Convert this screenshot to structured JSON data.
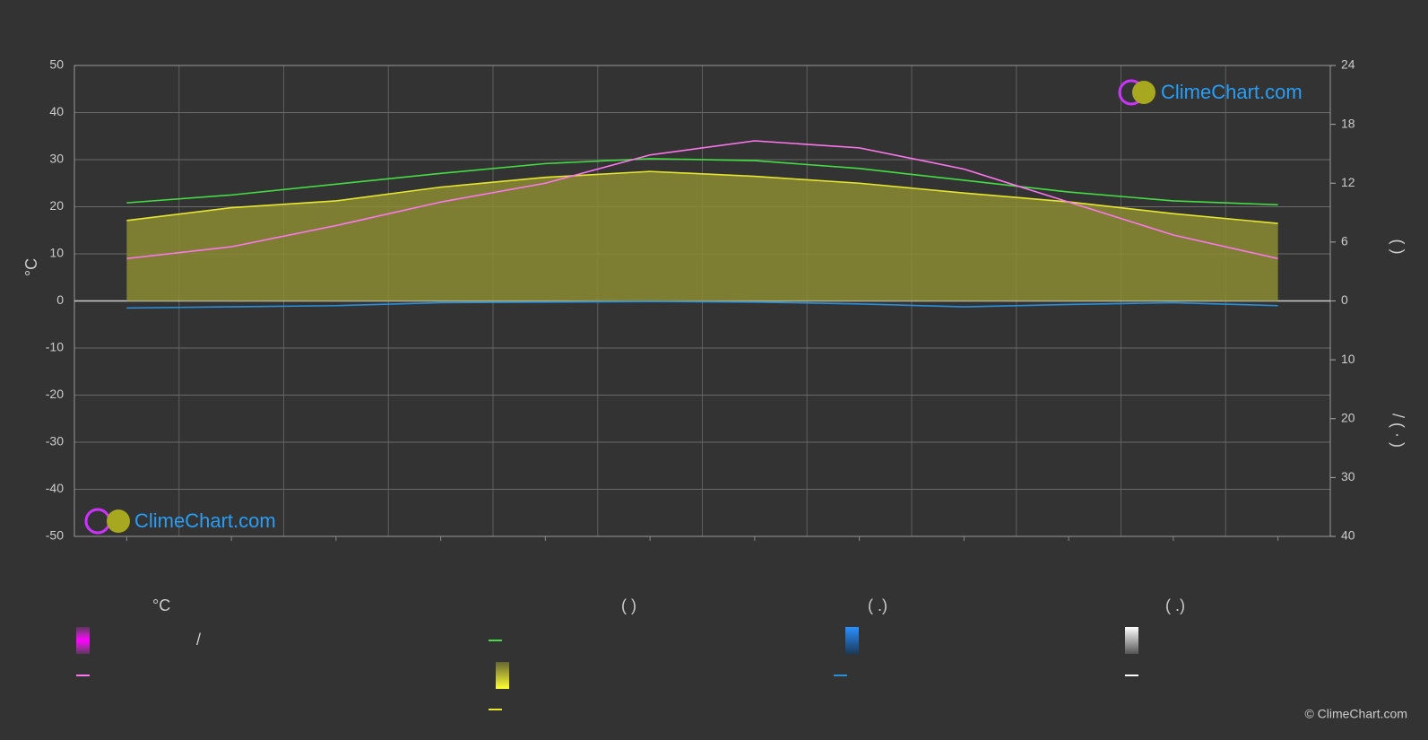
{
  "chart_data": {
    "type": "line",
    "y_label": "°C",
    "y2_label": "(   )",
    "y3_label": "/   (  ·  )",
    "watermark": "ClimeChart.com",
    "copyright": "© ClimeChart.com",
    "legend_headers": [
      "°C",
      "(          )",
      "(   .)",
      "(   .)"
    ],
    "legend_separator": "/",
    "categories": [
      null,
      null,
      null,
      null,
      null,
      null,
      null,
      null,
      null,
      null,
      null,
      null
    ],
    "ylim": [
      -50,
      50
    ],
    "yticks": [
      -50,
      -40,
      -30,
      -20,
      -10,
      0,
      10,
      20,
      30,
      40,
      50
    ],
    "y2lim": [
      0,
      24
    ],
    "y2ticks": [
      0,
      6,
      12,
      18,
      24
    ],
    "y3lim": [
      0,
      40
    ],
    "y3ticks": [
      10,
      20,
      30,
      40
    ],
    "grid": true,
    "series": [
      {
        "color": "#44dd44",
        "axis": "y2",
        "values": [
          10.0,
          10.8,
          11.9,
          13.0,
          14.0,
          14.5,
          14.3,
          13.5,
          12.3,
          11.1,
          10.2,
          9.8
        ]
      },
      {
        "color": "#e6e632",
        "axis": "y2",
        "fill": "#8c8c32",
        "values": [
          8.2,
          9.5,
          10.2,
          11.6,
          12.6,
          13.2,
          12.7,
          12.0,
          11.0,
          10.1,
          8.9,
          7.9
        ]
      },
      {
        "color": "#ff77ee",
        "values": [
          9,
          11.5,
          16,
          21,
          25,
          31,
          34,
          32.5,
          28,
          21,
          14,
          9
        ]
      },
      {
        "color": "#2a8fd8",
        "axis": "y3",
        "values": [
          1.2,
          1.0,
          0.8,
          0.3,
          0.2,
          0.1,
          0.2,
          0.5,
          1.0,
          0.6,
          0.3,
          0.8
        ]
      }
    ]
  }
}
